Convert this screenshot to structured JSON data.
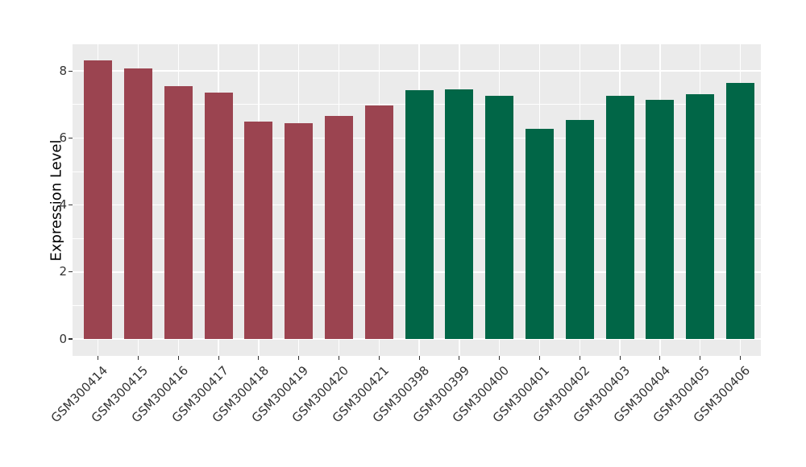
{
  "chart_data": {
    "type": "bar",
    "title": "",
    "ylabel": "Expression Level",
    "xlabel": "",
    "categories": [
      "GSM300414",
      "GSM300415",
      "GSM300416",
      "GSM300417",
      "GSM300418",
      "GSM300419",
      "GSM300420",
      "GSM300421",
      "GSM300398",
      "GSM300399",
      "GSM300400",
      "GSM300401",
      "GSM300402",
      "GSM300403",
      "GSM300404",
      "GSM300405",
      "GSM300406"
    ],
    "values": [
      8.32,
      8.08,
      7.56,
      7.36,
      6.5,
      6.45,
      6.65,
      6.98,
      7.42,
      7.45,
      7.26,
      6.27,
      6.55,
      7.26,
      7.13,
      7.32,
      7.64
    ],
    "groups": [
      "A",
      "A",
      "A",
      "A",
      "A",
      "A",
      "A",
      "A",
      "B",
      "B",
      "B",
      "B",
      "B",
      "B",
      "B",
      "B",
      "B"
    ],
    "group_colors": {
      "A": "#9B4450",
      "B": "#016647"
    },
    "yticks": [
      0,
      2,
      4,
      6,
      8
    ],
    "yticks_minor": [
      1,
      3,
      5,
      7
    ],
    "ylim": [
      0,
      8.8
    ],
    "legend_position": "none",
    "panel_background": "#EBEBEB",
    "gridline_color": "#FFFFFF",
    "axis_text_color": "#333333"
  }
}
